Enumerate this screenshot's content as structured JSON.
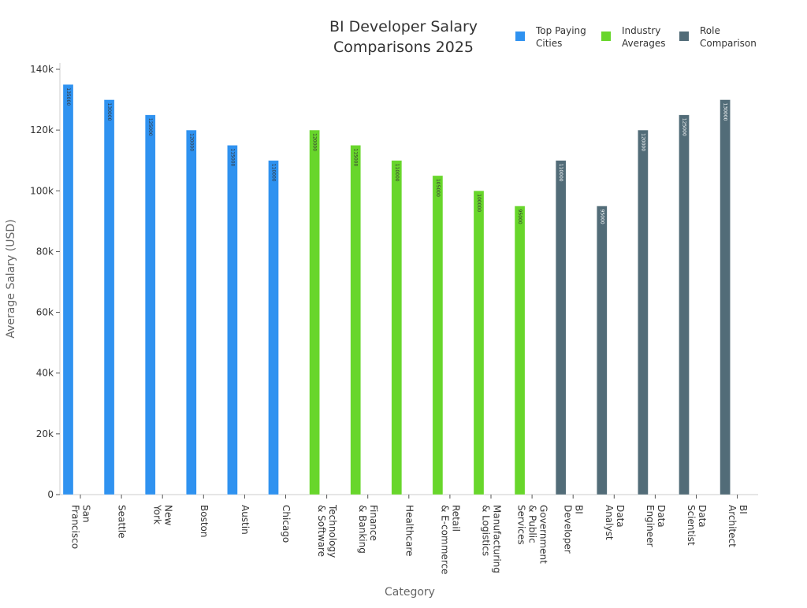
{
  "chart_data": {
    "type": "bar",
    "title_lines": [
      "BI Developer Salary",
      "Comparisons 2025"
    ],
    "xlabel": "Category",
    "ylabel": "Average Salary (USD)",
    "ylim": [
      0,
      140000
    ],
    "yticks": [
      0,
      20000,
      40000,
      60000,
      80000,
      100000,
      120000,
      140000
    ],
    "ytick_labels": [
      "0",
      "20k",
      "40k",
      "60k",
      "80k",
      "100k",
      "120k",
      "140k"
    ],
    "legend_position": "top-right",
    "categories": [
      "San Francisco",
      "Seattle",
      "New York",
      "Boston",
      "Austin",
      "Chicago",
      "Technology & Software",
      "Finance & Banking",
      "Healthcare",
      "Retail & E-commerce",
      "Manufacturing & Logistics",
      "Government & Public Services",
      "BI Developer",
      "Data Analyst",
      "Data Engineer",
      "Data Scientist",
      "BI Architect"
    ],
    "category_label_lines": [
      [
        "San",
        "Francisco"
      ],
      [
        "Seattle"
      ],
      [
        "New",
        "York"
      ],
      [
        "Boston"
      ],
      [
        "Austin"
      ],
      [
        "Chicago"
      ],
      [
        "Technology",
        "& Software"
      ],
      [
        "Finance",
        "& Banking"
      ],
      [
        "Healthcare"
      ],
      [
        "Retail",
        "& E-commerce"
      ],
      [
        "Manufacturing",
        "& Logistics"
      ],
      [
        "Government",
        "& Public",
        "Services"
      ],
      [
        "BI",
        "Developer"
      ],
      [
        "Data",
        "Analyst"
      ],
      [
        "Data",
        "Engineer"
      ],
      [
        "Data",
        "Scientist"
      ],
      [
        "BI",
        "Architect"
      ]
    ],
    "series": [
      {
        "name": "Top Paying Cities",
        "legend_lines": [
          "Top Paying",
          "Cities"
        ],
        "color": "#2f92f0",
        "values": [
          135000,
          130000,
          125000,
          120000,
          115000,
          110000,
          null,
          null,
          null,
          null,
          null,
          null,
          null,
          null,
          null,
          null,
          null
        ]
      },
      {
        "name": "Industry Averages",
        "legend_lines": [
          "Industry",
          "Averages"
        ],
        "color": "#68d62b",
        "values": [
          null,
          null,
          null,
          null,
          null,
          null,
          120000,
          115000,
          110000,
          105000,
          100000,
          95000,
          null,
          null,
          null,
          null,
          null
        ]
      },
      {
        "name": "Role Comparison",
        "legend_lines": [
          "Role",
          "Comparison"
        ],
        "color": "#526c78",
        "values": [
          null,
          null,
          null,
          null,
          null,
          null,
          null,
          null,
          null,
          null,
          null,
          null,
          110000,
          95000,
          120000,
          125000,
          130000
        ]
      }
    ]
  }
}
